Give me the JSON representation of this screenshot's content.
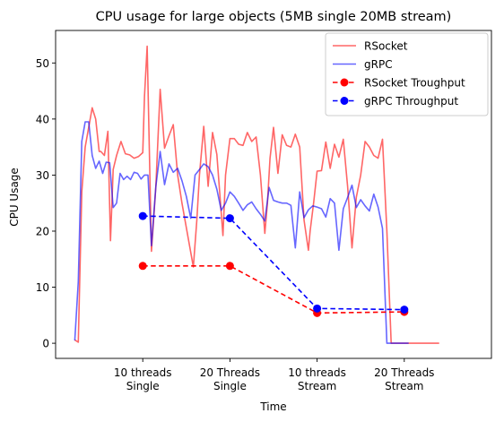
{
  "chart_data": {
    "type": "line",
    "title": "CPU usage for large objects (5MB single 20MB stream)",
    "xlabel": "Time",
    "ylabel": "CPU Usage",
    "ylim": [
      -2.7,
      55.8
    ],
    "xlim": [
      -0.5,
      4.5
    ],
    "grid": false,
    "legend_position": "top-right",
    "x_ticks": [
      {
        "x": 0.5,
        "lines": [
          "10 threads",
          "Single"
        ]
      },
      {
        "x": 1.5,
        "lines": [
          "20 Threads",
          "Single"
        ]
      },
      {
        "x": 2.5,
        "lines": [
          "10 threads",
          "Stream"
        ]
      },
      {
        "x": 3.5,
        "lines": [
          "20 Threads",
          "Stream"
        ]
      }
    ],
    "y_ticks": [
      0,
      10,
      20,
      30,
      40,
      50
    ],
    "series": [
      {
        "name": "RSocket",
        "color": "#ff0000",
        "opacity": 0.6,
        "style": "solid",
        "marker": false,
        "x": [
          -0.28,
          -0.24,
          -0.2,
          -0.16,
          -0.12,
          -0.08,
          -0.04,
          0.0,
          0.02,
          0.06,
          0.1,
          0.13,
          0.16,
          0.2,
          0.25,
          0.3,
          0.35,
          0.4,
          0.45,
          0.5,
          0.52,
          0.55,
          0.6,
          0.65,
          0.7,
          0.75,
          0.8,
          0.85,
          0.9,
          0.95,
          1.08,
          1.12,
          1.15,
          1.2,
          1.25,
          1.3,
          1.35,
          1.42,
          1.45,
          1.5,
          1.55,
          1.6,
          1.65,
          1.7,
          1.75,
          1.8,
          1.85,
          1.9,
          1.93,
          1.96,
          2.0,
          2.05,
          2.1,
          2.15,
          2.2,
          2.25,
          2.3,
          2.35,
          2.4,
          2.42,
          2.46,
          2.5,
          2.55,
          2.6,
          2.65,
          2.7,
          2.75,
          2.8,
          2.85,
          2.9,
          2.95,
          3.0,
          3.05,
          3.1,
          3.15,
          3.2,
          3.25,
          3.3,
          3.35,
          3.4,
          3.45,
          3.5,
          3.55,
          3.6,
          3.65,
          3.7,
          3.75,
          3.8,
          3.85,
          3.9
        ],
        "y": [
          0.6,
          0.2,
          27,
          35,
          38.5,
          42,
          40,
          34.2,
          34.2,
          33.5,
          37.8,
          18.3,
          31,
          33.5,
          36,
          33.8,
          33.6,
          33,
          33.3,
          34,
          44,
          53,
          16.4,
          28,
          45.3,
          34.8,
          37,
          39,
          30,
          25,
          13.6,
          22,
          30,
          38.7,
          28,
          37.6,
          33.7,
          19.2,
          30,
          36.5,
          36.5,
          35.5,
          35.3,
          37.6,
          36,
          36.8,
          30,
          19.6,
          25,
          33,
          38.5,
          30.3,
          37.2,
          35.3,
          35,
          37.3,
          35,
          22,
          16.6,
          20,
          25,
          30.7,
          30.8,
          35.9,
          31.2,
          35.5,
          33.2,
          36.4,
          28,
          17,
          26,
          30,
          36,
          35,
          33.5,
          33,
          36.4,
          20,
          0,
          0,
          0,
          0,
          0,
          0,
          0,
          0,
          0,
          0,
          0,
          0
        ],
        "note_trim": 82
      },
      {
        "name": "gRPC",
        "color": "#0000ff",
        "opacity": 0.6,
        "style": "solid",
        "marker": false,
        "x": [
          -0.28,
          -0.24,
          -0.2,
          -0.16,
          -0.12,
          -0.08,
          -0.04,
          0.0,
          0.04,
          0.08,
          0.12,
          0.16,
          0.2,
          0.24,
          0.28,
          0.32,
          0.36,
          0.4,
          0.44,
          0.48,
          0.52,
          0.56,
          0.6,
          0.65,
          0.7,
          0.75,
          0.8,
          0.85,
          0.9,
          0.95,
          1.0,
          1.05,
          1.1,
          1.15,
          1.2,
          1.25,
          1.3,
          1.35,
          1.4,
          1.45,
          1.5,
          1.55,
          1.6,
          1.65,
          1.7,
          1.75,
          1.8,
          1.85,
          1.9,
          1.95,
          2.0,
          2.05,
          2.1,
          2.15,
          2.2,
          2.25,
          2.3,
          2.35,
          2.4,
          2.45,
          2.5,
          2.55,
          2.6,
          2.65,
          2.7,
          2.75,
          2.8,
          2.85,
          2.9,
          2.95,
          3.0,
          3.05,
          3.1,
          3.15,
          3.2,
          3.25,
          3.3,
          3.35,
          3.4,
          3.45,
          3.5,
          3.55
        ],
        "y": [
          0.5,
          11,
          36,
          39.5,
          39.5,
          33.5,
          31.2,
          32.5,
          30.3,
          32.3,
          32.2,
          24.2,
          25,
          30.3,
          29.2,
          29.8,
          29.2,
          30.5,
          30.3,
          29.3,
          30,
          30,
          17.4,
          28,
          34.2,
          28.3,
          32,
          30.5,
          31.2,
          29,
          26.2,
          22.3,
          30,
          31,
          32,
          31.5,
          30,
          27.5,
          23.7,
          25,
          27,
          26.2,
          25,
          23.7,
          24.7,
          25.2,
          24,
          23,
          21.8,
          27.8,
          25.5,
          25.2,
          25,
          25,
          24.6,
          17,
          27,
          22.4,
          23.8,
          24.5,
          24.3,
          24,
          22.5,
          25.8,
          25,
          16.6,
          24,
          26,
          28.2,
          24.2,
          25.6,
          24.5,
          23.6,
          26.6,
          24.3,
          20.5,
          0,
          0,
          0,
          0,
          0,
          0
        ]
      },
      {
        "name": "RSocket Troughput",
        "color": "#ff0000",
        "opacity": 1,
        "style": "dashed",
        "marker": true,
        "x": [
          0.5,
          1.5,
          2.5,
          3.5
        ],
        "y": [
          13.8,
          13.8,
          5.4,
          5.6
        ]
      },
      {
        "name": "gRPC Throughput",
        "color": "#0000ff",
        "opacity": 1,
        "style": "dashed",
        "marker": true,
        "x": [
          0.5,
          1.5,
          2.5,
          3.5
        ],
        "y": [
          22.7,
          22.3,
          6.2,
          6.0
        ]
      }
    ]
  }
}
